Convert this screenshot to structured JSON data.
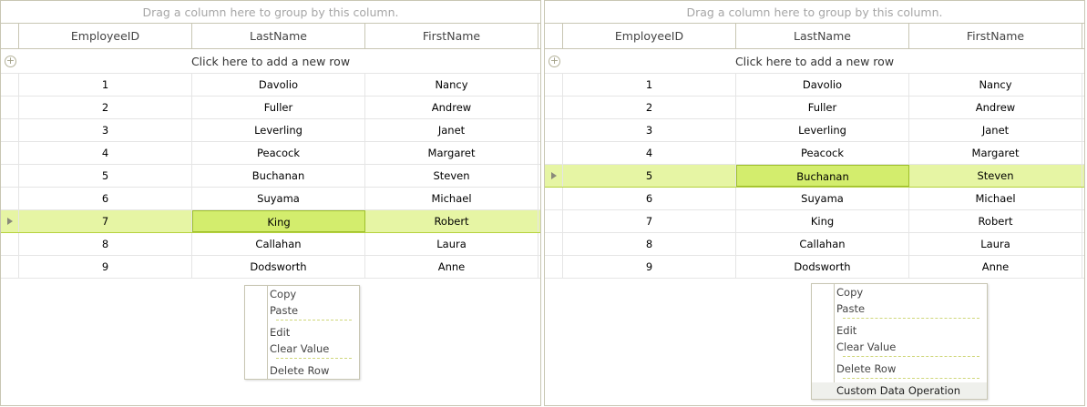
{
  "group_panel_text": "Drag a column here to group by this column.",
  "columns": [
    "EmployeeID",
    "LastName",
    "FirstName"
  ],
  "new_row_text": "Click here to add a new row",
  "rows": [
    [
      "1",
      "Davolio",
      "Nancy"
    ],
    [
      "2",
      "Fuller",
      "Andrew"
    ],
    [
      "3",
      "Leverling",
      "Janet"
    ],
    [
      "4",
      "Peacock",
      "Margaret"
    ],
    [
      "5",
      "Buchanan",
      "Steven"
    ],
    [
      "6",
      "Suyama",
      "Michael"
    ],
    [
      "7",
      "King",
      "Robert"
    ],
    [
      "8",
      "Callahan",
      "Laura"
    ],
    [
      "9",
      "Dodsworth",
      "Anne"
    ]
  ],
  "left_grid": {
    "selected_row": 7,
    "menu": [
      "Copy",
      "Paste",
      "-",
      "Edit",
      "Clear Value",
      "-",
      "Delete Row"
    ]
  },
  "right_grid": {
    "selected_row": 5,
    "menu": [
      "Copy",
      "Paste",
      "-",
      "Edit",
      "Clear Value",
      "-",
      "Delete Row",
      "-",
      "Custom Data Operation"
    ],
    "highlighted_item": "Custom Data Operation"
  },
  "colors": {
    "selected_row": "#e6f5a4",
    "current_cell": "#d3ed6d",
    "border": "#c8c6b3"
  }
}
